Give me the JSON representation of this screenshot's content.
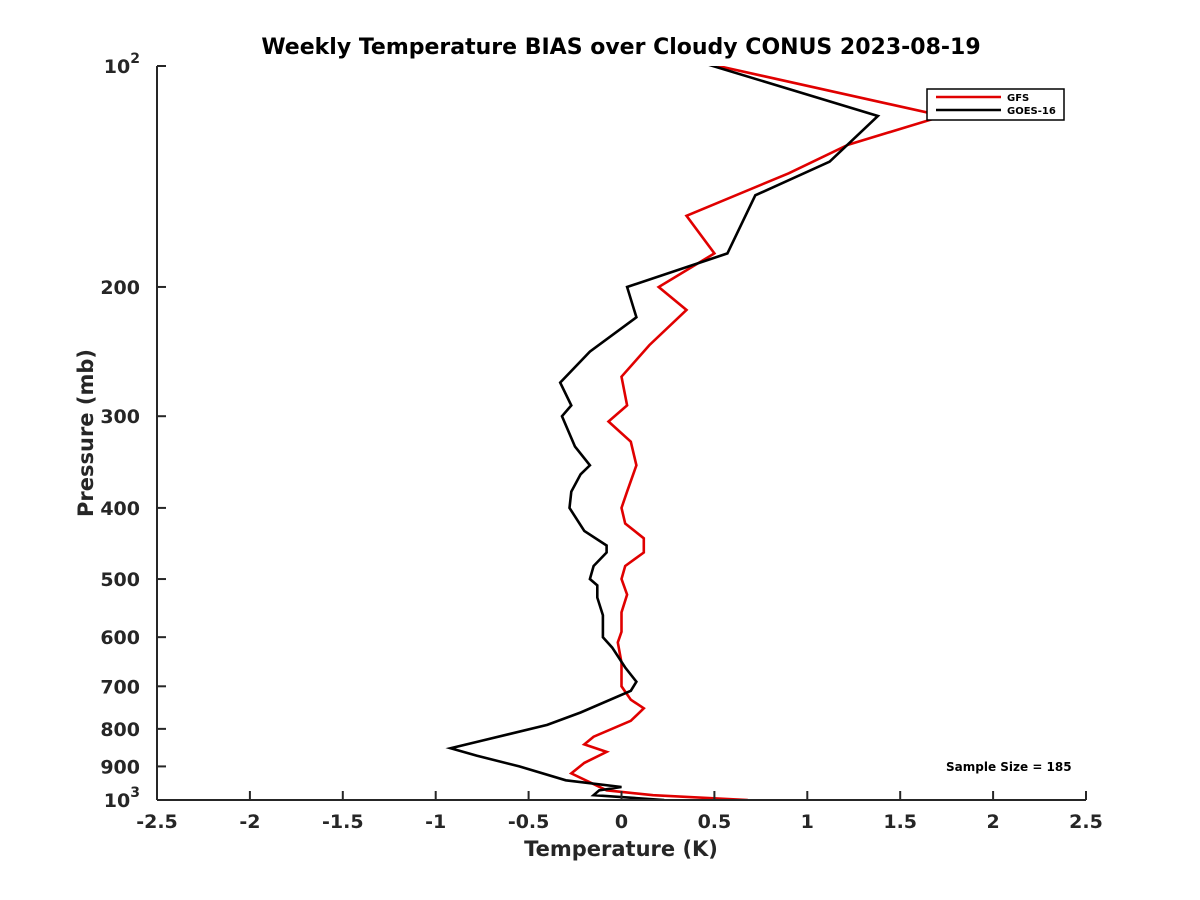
{
  "chart_data": {
    "type": "line",
    "title": "Weekly Temperature BIAS over Cloudy CONUS 2023-08-19",
    "xlabel": "Temperature (K)",
    "ylabel": "Pressure (mb)",
    "xlim": [
      -2.5,
      2.5
    ],
    "ylim": [
      100,
      1000
    ],
    "y_scale": "log",
    "y_reversed": true,
    "grid": false,
    "legend_position": "top-right",
    "x_tick_labels": [
      "-2.5",
      "-2",
      "-1.5",
      "-1",
      "-0.5",
      "0",
      "0.5",
      "1",
      "1.5",
      "2",
      "2.5"
    ],
    "y_ticks": [
      {
        "value": 100,
        "base": "10",
        "exponent": "2"
      },
      {
        "value": 200,
        "label": "200"
      },
      {
        "value": 300,
        "label": "300"
      },
      {
        "value": 400,
        "label": "400"
      },
      {
        "value": 500,
        "label": "500"
      },
      {
        "value": 600,
        "label": "600"
      },
      {
        "value": 700,
        "label": "700"
      },
      {
        "value": 800,
        "label": "800"
      },
      {
        "value": 900,
        "label": "900"
      },
      {
        "value": 1000,
        "base": "10",
        "exponent": "3"
      }
    ],
    "series": [
      {
        "name": "GFS",
        "color": "#e00000",
        "x": [
          0.52,
          1.73,
          1.22,
          0.9,
          0.35,
          0.5,
          0.2,
          0.35,
          0.15,
          0.0,
          0.03,
          -0.07,
          0.05,
          0.08,
          0.03,
          0.0,
          0.02,
          0.12,
          0.12,
          0.02,
          0.0,
          0.03,
          0.0,
          0.0,
          -0.02,
          0.0,
          0.0,
          0.05,
          0.12,
          0.05,
          -0.15,
          -0.2,
          -0.08,
          -0.2,
          -0.27,
          -0.08,
          0.17,
          0.68
        ],
        "y": [
          100,
          117,
          128,
          140,
          160,
          180,
          200,
          215,
          240,
          265,
          290,
          305,
          325,
          350,
          380,
          400,
          420,
          440,
          460,
          480,
          500,
          525,
          555,
          590,
          610,
          650,
          700,
          730,
          750,
          780,
          820,
          840,
          860,
          890,
          920,
          970,
          985,
          1000
        ]
      },
      {
        "name": "GOES-16",
        "color": "#000000",
        "x": [
          0.2,
          1.38,
          1.12,
          0.72,
          0.57,
          0.03,
          0.08,
          -0.17,
          -0.33,
          -0.27,
          -0.32,
          -0.25,
          -0.17,
          -0.22,
          -0.27,
          -0.28,
          -0.2,
          -0.08,
          -0.08,
          -0.15,
          -0.17,
          -0.13,
          -0.13,
          -0.1,
          -0.1,
          -0.05,
          0.02,
          0.08,
          0.05,
          -0.22,
          -0.4,
          -0.75,
          -0.92,
          -0.78,
          -0.55,
          -0.3,
          0.0,
          -0.12,
          -0.15,
          0.23
        ],
        "y": [
          95,
          117,
          135,
          150,
          180,
          200,
          220,
          245,
          270,
          290,
          300,
          330,
          350,
          360,
          380,
          400,
          430,
          450,
          460,
          480,
          500,
          510,
          530,
          560,
          600,
          620,
          660,
          690,
          710,
          760,
          790,
          830,
          850,
          870,
          900,
          940,
          960,
          970,
          985,
          1000
        ]
      }
    ],
    "annotations": [
      "Sample Size = 185"
    ]
  }
}
